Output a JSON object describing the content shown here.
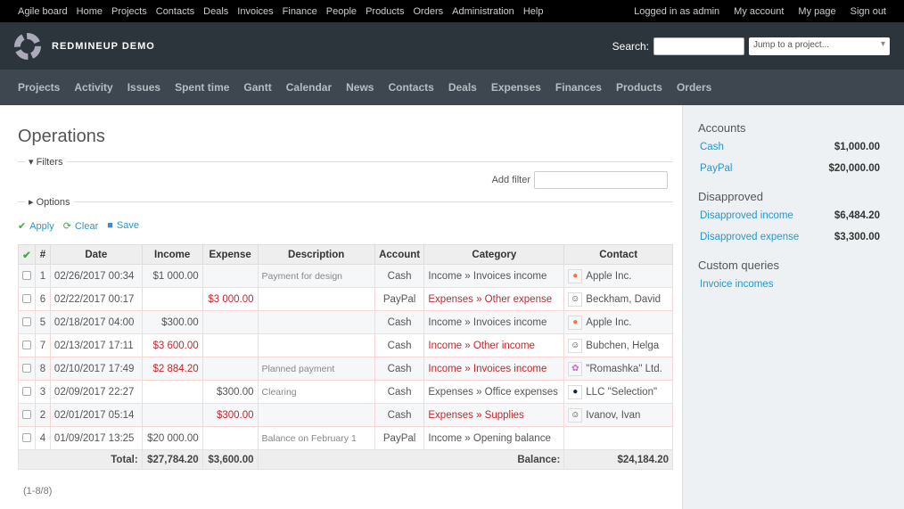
{
  "topmenu": {
    "left": [
      "Agile board",
      "Home",
      "Projects",
      "Contacts",
      "Deals",
      "Invoices",
      "Finance",
      "People",
      "Products",
      "Orders",
      "Administration",
      "Help"
    ],
    "logged_in_prefix": "Logged in as",
    "user": "admin",
    "right": [
      "My account",
      "My page",
      "Sign out"
    ]
  },
  "header": {
    "title": "REDMINEUP DEMO",
    "search_label": "Search:",
    "jump": "Jump to a project..."
  },
  "mainmenu": [
    "Projects",
    "Activity",
    "Issues",
    "Spent time",
    "Gantt",
    "Calendar",
    "News",
    "Contacts",
    "Deals",
    "Expenses",
    "Finances",
    "Products",
    "Orders"
  ],
  "page": {
    "title": "Operations",
    "filters": "Filters",
    "add_filter": "Add filter",
    "options": "Options",
    "apply": "Apply",
    "clear": "Clear",
    "save": "Save",
    "pagination": "(1-8/8)"
  },
  "table": {
    "headers": [
      "#",
      "Date",
      "Income",
      "Expense",
      "Description",
      "Account",
      "Category",
      "Contact"
    ],
    "rows": [
      {
        "id": "1",
        "date": "02/26/2017 00:34",
        "income": "$1 000.00",
        "expense": "",
        "desc": "Payment for design",
        "account": "Cash",
        "category": "Income » Invoices income",
        "contact": "Apple Inc.",
        "red": false,
        "avatar": "apple-logo-icon"
      },
      {
        "id": "6",
        "date": "02/22/2017 00:17",
        "income": "",
        "expense": "$3 000.00",
        "desc": "",
        "account": "PayPal",
        "category": "Expenses » Other expense",
        "contact": "Beckham, David",
        "red": true,
        "avatar": "person-avatar-icon"
      },
      {
        "id": "5",
        "date": "02/18/2017 04:00",
        "income": "$300.00",
        "expense": "",
        "desc": "",
        "account": "Cash",
        "category": "Income » Invoices income",
        "contact": "Apple Inc.",
        "red": false,
        "avatar": "apple-logo-icon"
      },
      {
        "id": "7",
        "date": "02/13/2017 17:11",
        "income": "$3 600.00",
        "expense": "",
        "desc": "",
        "account": "Cash",
        "category": "Income » Other income",
        "contact": "Bubchen, Helga",
        "red": true,
        "avatar": "person-avatar-icon"
      },
      {
        "id": "8",
        "date": "02/10/2017 17:49",
        "income": "$2 884.20",
        "expense": "",
        "desc": "Planned payment",
        "account": "Cash",
        "category": "Income » Invoices income",
        "contact": "\"Romashka\" Ltd.",
        "red": true,
        "avatar": "flower-logo-icon"
      },
      {
        "id": "3",
        "date": "02/09/2017 22:27",
        "income": "",
        "expense": "$300.00",
        "desc": "Clearing",
        "account": "Cash",
        "category": "Expenses » Office expenses",
        "contact": "LLC \"Selection\"",
        "red": false,
        "avatar": "blue-circle-logo-icon"
      },
      {
        "id": "2",
        "date": "02/01/2017 05:14",
        "income": "",
        "expense": "$300.00",
        "desc": "",
        "account": "Cash",
        "category": "Expenses » Supplies",
        "contact": "Ivanov, Ivan",
        "red": true,
        "avatar": "person-avatar-icon"
      },
      {
        "id": "4",
        "date": "01/09/2017 13:25",
        "income": "$20 000.00",
        "expense": "",
        "desc": "Balance on February 1",
        "account": "PayPal",
        "category": "Income » Opening balance",
        "contact": "",
        "red": false,
        "avatar": ""
      }
    ],
    "total_label": "Total:",
    "total_income": "$27,784.20",
    "total_expense": "$3,600.00",
    "balance_label": "Balance:",
    "balance": "$24,184.20"
  },
  "sidebar": {
    "accounts_title": "Accounts",
    "accounts": [
      {
        "name": "Cash",
        "value": "$1,000.00"
      },
      {
        "name": "PayPal",
        "value": "$20,000.00"
      }
    ],
    "disapproved_title": "Disapproved",
    "disapproved": [
      {
        "name": "Disapproved income",
        "value": "$6,484.20"
      },
      {
        "name": "Disapproved expense",
        "value": "$3,300.00"
      }
    ],
    "queries_title": "Custom queries",
    "queries": [
      "Invoice incomes"
    ]
  },
  "colors": {
    "red": "#c0282d",
    "link": "#2996cc",
    "header": "#2c343c",
    "menu": "#3e4750"
  }
}
